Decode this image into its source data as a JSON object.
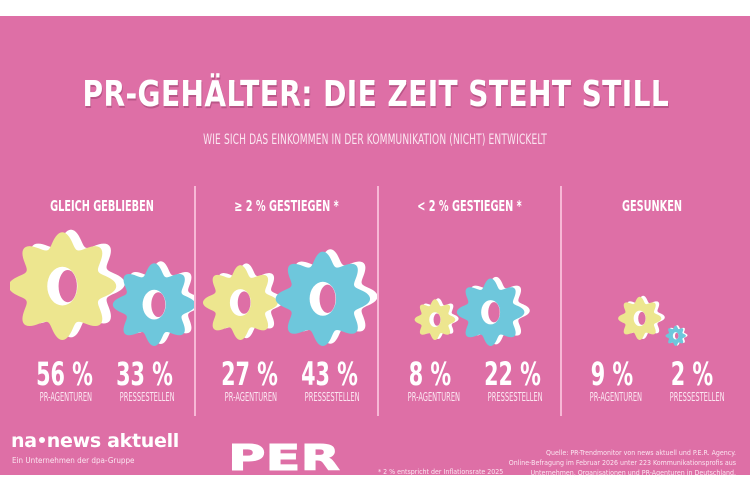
{
  "header": {
    "title": "PR-GEHÄLTER: DIE ZEIT STEHT STILL",
    "subtitle": "WIE SICH DAS EINKOMMEN IN DER KOMMUNIKATION (NICHT) ENTWICKELT"
  },
  "colors": {
    "background": "#de6fa6",
    "gear_pr_agenturen": "#ede68f",
    "gear_pressestellen": "#6ec7dc",
    "gear_extrusion": "#ffffff"
  },
  "categories": [
    {
      "heading": "GLEICH GEBLIEBEN",
      "stats": [
        {
          "value": "56 %",
          "percent": 56,
          "label": "PR-AGENTUREN"
        },
        {
          "value": "33 %",
          "percent": 33,
          "label": "PRESSESTELLEN"
        }
      ]
    },
    {
      "heading": "≥ 2 % GESTIEGEN  *",
      "stats": [
        {
          "value": "27 %",
          "percent": 27,
          "label": "PR-AGENTUREN"
        },
        {
          "value": "43 %",
          "percent": 43,
          "label": "PRESSESTELLEN"
        }
      ]
    },
    {
      "heading": "< 2 % GESTIEGEN  *",
      "stats": [
        {
          "value": "8 %",
          "percent": 8,
          "label": "PR-AGENTUREN"
        },
        {
          "value": "22 %",
          "percent": 22,
          "label": "PRESSESTELLEN"
        }
      ]
    },
    {
      "heading": "GESUNKEN",
      "stats": [
        {
          "value": "9 %",
          "percent": 9,
          "label": "PR-AGENTUREN"
        },
        {
          "value": "2 %",
          "percent": 2,
          "label": "PRESSESTELLEN"
        }
      ]
    }
  ],
  "footer": {
    "logo_na_left": "na",
    "logo_na_right": "news aktuell",
    "logo_na_tagline": "Ein Unternehmen der dpa-Gruppe",
    "logo_per": "PER",
    "footnote": "* 2 % entspricht der Inflationsrate 2025",
    "source_lines": [
      "Quelle: PR-Trendmonitor von news aktuell und P.E.R. Agency.",
      "Online-Befragung im Februar 2026 unter 223 Kommunikationsprofis aus",
      "Unternehmen, Organisationen und PR-Agenturen in Deutschland."
    ]
  }
}
